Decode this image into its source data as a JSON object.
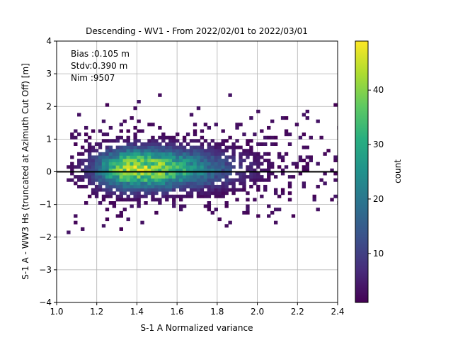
{
  "chart_data": {
    "type": "heatmap",
    "title": "Descending - WV1 - From 2022/02/01 to 2022/03/01",
    "xlabel": "S-1 A Normalized variance",
    "ylabel": "S-1 A - WW3 Hs (truncated at Azimuth Cut Off) [m]",
    "xlim": [
      1.0,
      2.4
    ],
    "ylim": [
      -4,
      4
    ],
    "x_ticks": [
      "1.0",
      "1.2",
      "1.4",
      "1.6",
      "1.8",
      "2.0",
      "2.2",
      "2.4"
    ],
    "y_ticks": [
      "−4",
      "−3",
      "−2",
      "−1",
      "0",
      "1",
      "2",
      "3",
      "4"
    ],
    "grid": true,
    "reference_line_y": 0,
    "annotations": [
      "Bias :0.105 m",
      "Stdv:0.390 m",
      "Nim :9507"
    ],
    "colorbar": {
      "label": "count",
      "min": 1,
      "max": 49,
      "ticks": [
        "10",
        "20",
        "30",
        "40"
      ],
      "colormap": "viridis"
    },
    "density_peak": {
      "x": 1.38,
      "y": 0.1,
      "count": 49
    },
    "density_spread": {
      "x": [
        1.05,
        2.4
      ],
      "y": [
        -1.9,
        2.5
      ]
    }
  }
}
